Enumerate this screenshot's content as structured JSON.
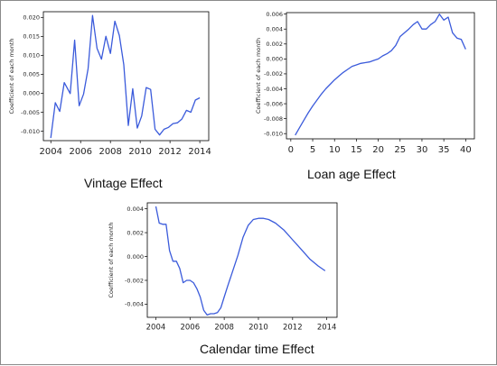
{
  "chart_data": [
    {
      "type": "line",
      "title": "Vintage Effect",
      "ylabel": "Coefficient of each month",
      "xlabel": "",
      "xlim": [
        2003.5,
        2014.6
      ],
      "ylim": [
        -0.0125,
        0.0215
      ],
      "xticks": [
        2004,
        2006,
        2008,
        2010,
        2012,
        2014
      ],
      "xtick_labels": [
        "2004",
        "2006",
        "2008",
        "2010",
        "2012",
        "2014"
      ],
      "yticks": [
        -0.01,
        -0.005,
        0.0,
        0.005,
        0.01,
        0.015,
        0.02
      ],
      "ytick_labels": [
        "-0.010",
        "-0.005",
        "0.000",
        "0.005",
        "0.010",
        "0.015",
        "0.020"
      ],
      "grid": false,
      "color": "#3b5bdb",
      "series": [
        {
          "x": [
            2004.0,
            2004.3,
            2004.6,
            2004.9,
            2005.3,
            2005.6,
            2005.9,
            2006.2,
            2006.5,
            2006.8,
            2007.1,
            2007.4,
            2007.7,
            2008.0,
            2008.3,
            2008.6,
            2008.9,
            2009.2,
            2009.5,
            2009.8,
            2010.1,
            2010.4,
            2010.7,
            2011.0,
            2011.3,
            2011.6,
            2011.9,
            2012.2,
            2012.5,
            2012.8,
            2013.1,
            2013.4,
            2013.7,
            2014.0
          ],
          "y": [
            -0.0118,
            -0.0025,
            -0.0048,
            0.0028,
            -0.0001,
            0.014,
            -0.0033,
            -0.0002,
            0.0065,
            0.0205,
            0.0118,
            0.009,
            0.015,
            0.0105,
            0.019,
            0.0152,
            0.0075,
            -0.0085,
            0.0012,
            -0.0092,
            -0.006,
            0.0015,
            0.001,
            -0.0095,
            -0.011,
            -0.0095,
            -0.009,
            -0.008,
            -0.0078,
            -0.0068,
            -0.0045,
            -0.005,
            -0.0018,
            -0.0012
          ]
        }
      ]
    },
    {
      "type": "line",
      "title": "Loan age Effect",
      "ylabel": "Coefficient of each month",
      "xlabel": "",
      "xlim": [
        -1,
        42
      ],
      "ylim": [
        -0.0107,
        0.0062
      ],
      "xticks": [
        0,
        5,
        10,
        15,
        20,
        25,
        30,
        35,
        40
      ],
      "xtick_labels": [
        "0",
        "5",
        "10",
        "15",
        "20",
        "25",
        "30",
        "35",
        "40"
      ],
      "yticks": [
        -0.01,
        -0.008,
        -0.006,
        -0.004,
        -0.002,
        0.0,
        0.002,
        0.004,
        0.006
      ],
      "ytick_labels": [
        "-0.010",
        "-0.008",
        "-0.006",
        "-0.004",
        "-0.002",
        "0.000",
        "0.002",
        "0.004",
        "0.006"
      ],
      "grid": false,
      "color": "#3b5bdb",
      "series": [
        {
          "x": [
            1,
            2,
            3,
            4,
            5,
            6,
            7,
            8,
            9,
            10,
            11,
            12,
            13,
            14,
            15,
            16,
            17,
            18,
            19,
            20,
            21,
            22,
            23,
            24,
            25,
            26,
            27,
            28,
            29,
            30,
            31,
            32,
            33,
            34,
            35,
            36,
            37,
            38,
            39,
            40
          ],
          "y": [
            -0.0102,
            -0.0092,
            -0.0082,
            -0.0072,
            -0.0063,
            -0.0055,
            -0.0047,
            -0.004,
            -0.0034,
            -0.0028,
            -0.0023,
            -0.0018,
            -0.0014,
            -0.001,
            -0.0008,
            -0.0006,
            -0.0005,
            -0.0004,
            -0.0002,
            0.0,
            0.0004,
            0.0007,
            0.0011,
            0.0018,
            0.003,
            0.0035,
            0.004,
            0.0046,
            0.005,
            0.004,
            0.004,
            0.0046,
            0.005,
            0.006,
            0.0052,
            0.0056,
            0.0035,
            0.0028,
            0.0026,
            0.0013
          ]
        }
      ]
    },
    {
      "type": "line",
      "title": "Calendar time Effect",
      "ylabel": "Coefficient of each month",
      "xlabel": "",
      "xlim": [
        2003.5,
        2014.6
      ],
      "ylim": [
        -0.0051,
        0.0045
      ],
      "xticks": [
        2004,
        2006,
        2008,
        2010,
        2012,
        2014
      ],
      "xtick_labels": [
        "2004",
        "2006",
        "2008",
        "2010",
        "2012",
        "2014"
      ],
      "yticks": [
        -0.004,
        -0.002,
        0.0,
        0.002,
        0.004
      ],
      "ytick_labels": [
        "-0.004",
        "-0.002",
        "0.000",
        "0.002",
        "0.004"
      ],
      "grid": false,
      "color": "#3b5bdb",
      "series": [
        {
          "x": [
            2004.0,
            2004.2,
            2004.4,
            2004.6,
            2004.8,
            2005.0,
            2005.2,
            2005.4,
            2005.6,
            2005.8,
            2006.0,
            2006.2,
            2006.4,
            2006.6,
            2006.8,
            2007.0,
            2007.2,
            2007.4,
            2007.6,
            2007.8,
            2008.0,
            2008.2,
            2008.5,
            2008.8,
            2009.1,
            2009.4,
            2009.7,
            2010.0,
            2010.3,
            2010.6,
            2011.0,
            2011.5,
            2012.0,
            2012.5,
            2013.0,
            2013.5,
            2013.9
          ],
          "y": [
            0.0042,
            0.0028,
            0.0027,
            0.0027,
            0.0005,
            -0.0004,
            -0.0004,
            -0.001,
            -0.0022,
            -0.002,
            -0.002,
            -0.0022,
            -0.0027,
            -0.0034,
            -0.0045,
            -0.0049,
            -0.0048,
            -0.0048,
            -0.0047,
            -0.0043,
            -0.0034,
            -0.0025,
            -0.0012,
            0.0001,
            0.0016,
            0.0026,
            0.0031,
            0.0032,
            0.0032,
            0.0031,
            0.0028,
            0.0022,
            0.0014,
            0.0006,
            -0.0002,
            -0.0008,
            -0.0012
          ]
        }
      ]
    }
  ]
}
